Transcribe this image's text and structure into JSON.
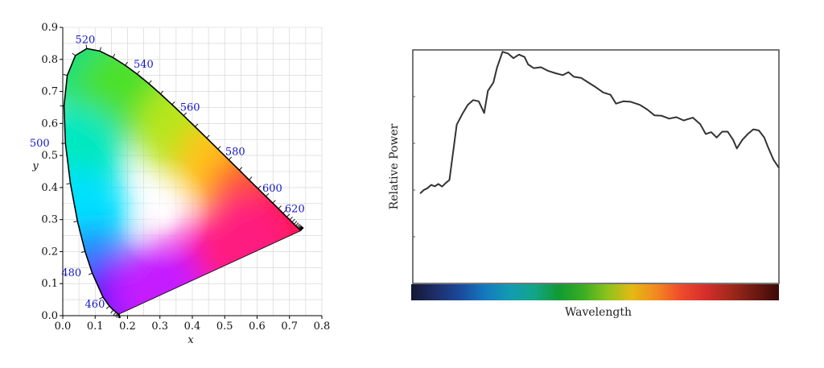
{
  "chart_data": [
    {
      "type": "scatter",
      "variant": "cie-1931-chromaticity-diagram",
      "title": "",
      "xlabel": "x",
      "ylabel": "y",
      "xlim": [
        0.0,
        0.8
      ],
      "ylim": [
        0.0,
        0.9
      ],
      "x_ticks": [
        "0.0",
        "0.1",
        "0.2",
        "0.3",
        "0.4",
        "0.5",
        "0.6",
        "0.7",
        "0.8"
      ],
      "y_ticks": [
        "0.0",
        "0.1",
        "0.2",
        "0.3",
        "0.4",
        "0.5",
        "0.6",
        "0.7",
        "0.8",
        "0.9"
      ],
      "grid": true,
      "spectral_locus": [
        [
          0.1741,
          0.005
        ],
        [
          0.174,
          0.005
        ],
        [
          0.1738,
          0.0049
        ],
        [
          0.1736,
          0.0049
        ],
        [
          0.173,
          0.0048
        ],
        [
          0.1714,
          0.0051
        ],
        [
          0.1689,
          0.0069
        ],
        [
          0.1644,
          0.0109
        ],
        [
          0.1566,
          0.0177
        ],
        [
          0.144,
          0.0297
        ],
        [
          0.1241,
          0.0578
        ],
        [
          0.0913,
          0.1327
        ],
        [
          0.0687,
          0.2007
        ],
        [
          0.0454,
          0.295
        ],
        [
          0.0235,
          0.4127
        ],
        [
          0.0082,
          0.5384
        ],
        [
          0.0039,
          0.6548
        ],
        [
          0.0139,
          0.7502
        ],
        [
          0.0389,
          0.812
        ],
        [
          0.0743,
          0.8338
        ],
        [
          0.1142,
          0.8262
        ],
        [
          0.1547,
          0.8059
        ],
        [
          0.1929,
          0.7816
        ],
        [
          0.2296,
          0.7543
        ],
        [
          0.2658,
          0.7243
        ],
        [
          0.3016,
          0.6923
        ],
        [
          0.3373,
          0.6589
        ],
        [
          0.3731,
          0.6245
        ],
        [
          0.4087,
          0.5896
        ],
        [
          0.4441,
          0.5547
        ],
        [
          0.4788,
          0.5202
        ],
        [
          0.5125,
          0.4866
        ],
        [
          0.5448,
          0.4544
        ],
        [
          0.5752,
          0.4242
        ],
        [
          0.6029,
          0.3965
        ],
        [
          0.627,
          0.3725
        ],
        [
          0.6482,
          0.3514
        ],
        [
          0.6658,
          0.334
        ],
        [
          0.6801,
          0.3197
        ],
        [
          0.6915,
          0.3083
        ],
        [
          0.7006,
          0.2993
        ],
        [
          0.7079,
          0.292
        ],
        [
          0.714,
          0.2859
        ],
        [
          0.719,
          0.2809
        ],
        [
          0.723,
          0.277
        ],
        [
          0.726,
          0.274
        ],
        [
          0.7283,
          0.2717
        ],
        [
          0.73,
          0.27
        ],
        [
          0.7311,
          0.2689
        ],
        [
          0.732,
          0.268
        ],
        [
          0.7327,
          0.2673
        ],
        [
          0.7334,
          0.2666
        ],
        [
          0.734,
          0.266
        ],
        [
          0.7344,
          0.2656
        ],
        [
          0.7346,
          0.2654
        ],
        [
          0.7347,
          0.2653
        ]
      ],
      "wavelength_labels": [
        {
          "nm": "460",
          "x": 0.144,
          "y": 0.0297
        },
        {
          "nm": "480",
          "x": 0.0913,
          "y": 0.1327
        },
        {
          "nm": "500",
          "x": 0.0082,
          "y": 0.5384
        },
        {
          "nm": "520",
          "x": 0.0743,
          "y": 0.8338
        },
        {
          "nm": "540",
          "x": 0.2296,
          "y": 0.7543
        },
        {
          "nm": "560",
          "x": 0.3731,
          "y": 0.6245
        },
        {
          "nm": "580",
          "x": 0.5125,
          "y": 0.4866
        },
        {
          "nm": "600",
          "x": 0.627,
          "y": 0.3725
        },
        {
          "nm": "620",
          "x": 0.6915,
          "y": 0.3083
        }
      ],
      "colors": {
        "label": "#1515c8",
        "locus": "#000000",
        "grid": "#d0d0d0"
      }
    },
    {
      "type": "line",
      "variant": "spectral-power-distribution",
      "title": "",
      "xlabel": "Wavelength",
      "ylabel": "Relative Power",
      "x_ticks": [],
      "y_ticks": [],
      "xlim": [
        0,
        100
      ],
      "ylim": [
        0,
        100
      ],
      "grid": false,
      "series": [
        {
          "values": [
            [
              2.0,
              38.5
            ],
            [
              3.0,
              40.0
            ],
            [
              4.0,
              40.8
            ],
            [
              5.0,
              42.2
            ],
            [
              6.0,
              41.6
            ],
            [
              7.0,
              42.6
            ],
            [
              8.0,
              41.5
            ],
            [
              9.0,
              43.0
            ],
            [
              10.0,
              44.3
            ],
            [
              11.0,
              56.0
            ],
            [
              12.0,
              68.0
            ],
            [
              13.5,
              72.5
            ],
            [
              15.0,
              76.5
            ],
            [
              16.5,
              78.5
            ],
            [
              18.0,
              78.0
            ],
            [
              19.5,
              73.0
            ],
            [
              20.5,
              82.5
            ],
            [
              22.0,
              86.0
            ],
            [
              23.0,
              92.5
            ],
            [
              24.5,
              99.2
            ],
            [
              26.0,
              98.5
            ],
            [
              27.5,
              96.5
            ],
            [
              29.0,
              98.0
            ],
            [
              30.5,
              97.0
            ],
            [
              31.5,
              93.8
            ],
            [
              33.0,
              92.2
            ],
            [
              35.0,
              92.6
            ],
            [
              37.0,
              91.0
            ],
            [
              39.0,
              90.0
            ],
            [
              41.0,
              89.2
            ],
            [
              42.5,
              90.5
            ],
            [
              44.0,
              88.5
            ],
            [
              46.0,
              88.0
            ],
            [
              48.0,
              86.0
            ],
            [
              50.0,
              84.0
            ],
            [
              52.0,
              81.8
            ],
            [
              54.0,
              80.8
            ],
            [
              55.5,
              77.0
            ],
            [
              57.5,
              78.0
            ],
            [
              59.5,
              77.8
            ],
            [
              62.0,
              76.5
            ],
            [
              64.0,
              74.5
            ],
            [
              66.0,
              72.0
            ],
            [
              68.0,
              71.8
            ],
            [
              70.0,
              70.6
            ],
            [
              72.0,
              71.2
            ],
            [
              74.0,
              69.8
            ],
            [
              76.5,
              71.0
            ],
            [
              78.5,
              68.2
            ],
            [
              80.0,
              64.0
            ],
            [
              81.5,
              64.8
            ],
            [
              83.0,
              62.5
            ],
            [
              84.5,
              65.0
            ],
            [
              86.0,
              65.0
            ],
            [
              87.5,
              61.5
            ],
            [
              88.5,
              57.8
            ],
            [
              90.0,
              61.5
            ],
            [
              91.5,
              64.0
            ],
            [
              93.0,
              66.0
            ],
            [
              94.5,
              65.5
            ],
            [
              96.0,
              62.5
            ],
            [
              97.0,
              58.5
            ],
            [
              98.5,
              53.0
            ],
            [
              100.0,
              49.5
            ]
          ]
        }
      ],
      "spectrum_bar_stops": [
        "#141833",
        "#1e2e6a",
        "#1a4a9c",
        "#1479be",
        "#129bb2",
        "#13a58a",
        "#119a33",
        "#3aad22",
        "#8cc21d",
        "#e5b914",
        "#f2891f",
        "#ef4b2c",
        "#d62e2a",
        "#a2291c",
        "#6f1a12",
        "#3c0a08"
      ],
      "colors": {
        "line": "#333333",
        "frame": "#555555"
      }
    }
  ]
}
